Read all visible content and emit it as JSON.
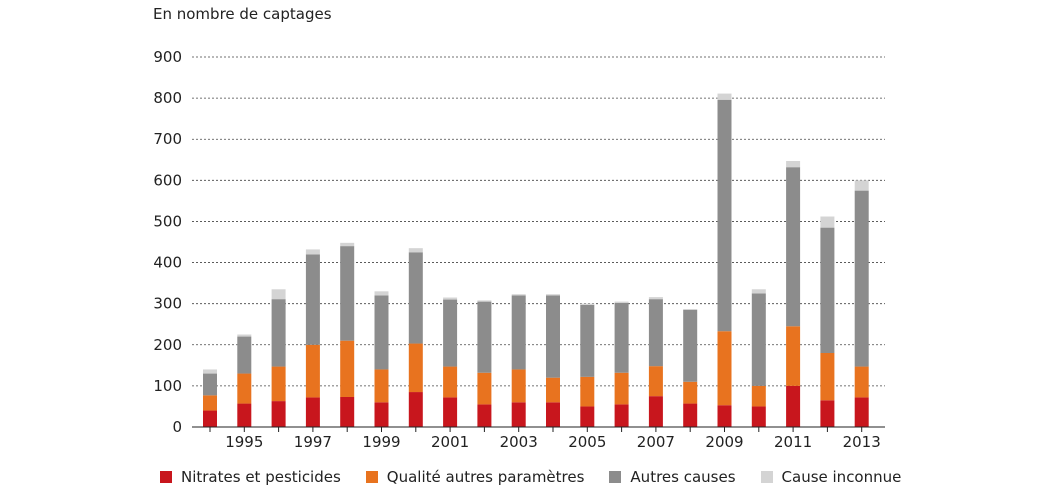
{
  "chart_data": {
    "type": "bar",
    "stacked": true,
    "ylabel": "En nombre de captages",
    "ylim": [
      0,
      900
    ],
    "yticks": [
      0,
      100,
      200,
      300,
      400,
      500,
      600,
      700,
      800,
      900
    ],
    "grid": true,
    "legend_position": "bottom",
    "x": [
      1994,
      1995,
      1996,
      1997,
      1998,
      1999,
      2000,
      2001,
      2002,
      2003,
      2004,
      2005,
      2006,
      2007,
      2008,
      2009,
      2010,
      2011,
      2012,
      2013
    ],
    "x_tick_labels": [
      "1995",
      "1997",
      "1999",
      "2001",
      "2003",
      "2005",
      "2007",
      "2009",
      "2011",
      "2013"
    ],
    "series": [
      {
        "name": "Nitrates et pesticides",
        "color": "#c8161d",
        "values": [
          40,
          57,
          63,
          72,
          73,
          60,
          85,
          72,
          55,
          60,
          60,
          50,
          55,
          75,
          57,
          53,
          50,
          100,
          65,
          72
        ]
      },
      {
        "name": "Qualité autres paramètres",
        "color": "#e8731f",
        "values": [
          37,
          73,
          84,
          128,
          137,
          80,
          118,
          75,
          77,
          80,
          60,
          72,
          77,
          73,
          53,
          180,
          50,
          145,
          115,
          75
        ]
      },
      {
        "name": "Autres causes",
        "color": "#8c8c8c",
        "values": [
          53,
          90,
          164,
          220,
          230,
          180,
          222,
          163,
          173,
          180,
          200,
          175,
          170,
          163,
          175,
          563,
          225,
          387,
          305,
          428
        ]
      },
      {
        "name": "Cause inconnue",
        "color": "#d4d4d4",
        "values": [
          10,
          5,
          24,
          12,
          8,
          10,
          10,
          5,
          3,
          3,
          3,
          3,
          3,
          5,
          2,
          15,
          10,
          15,
          27,
          25
        ]
      }
    ]
  }
}
